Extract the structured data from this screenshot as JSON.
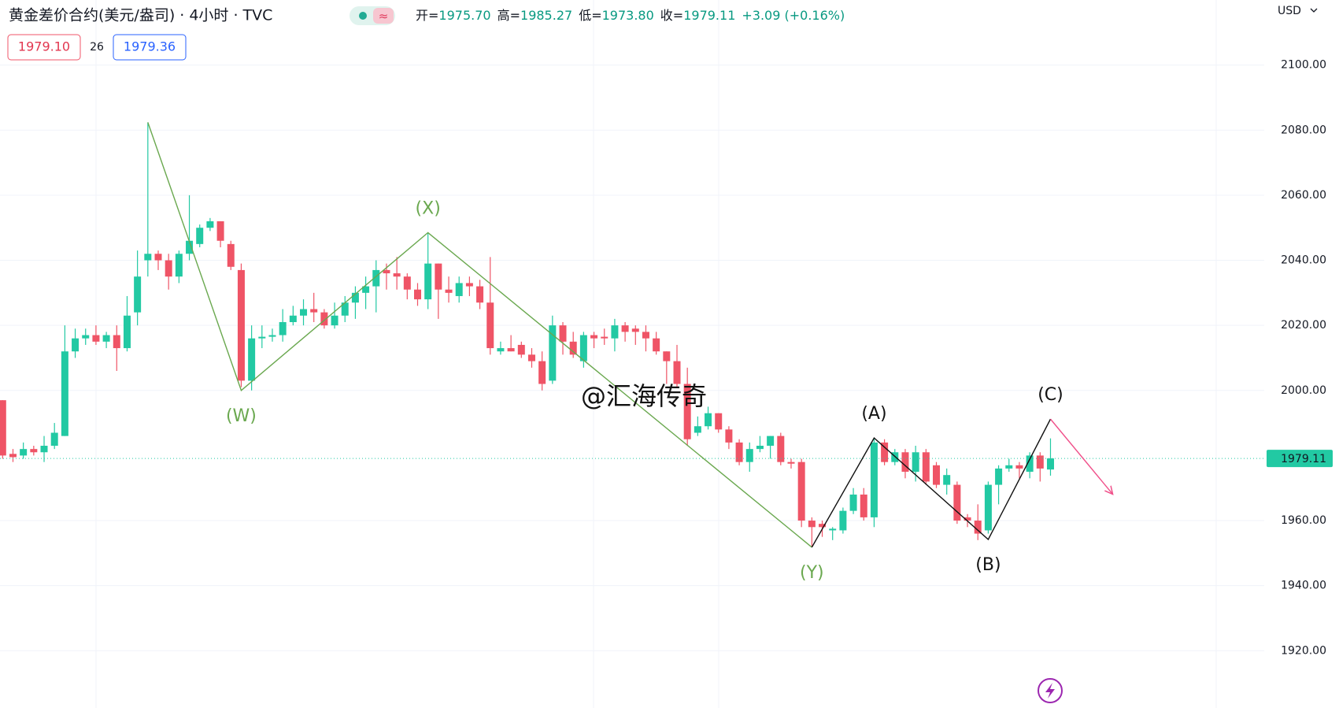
{
  "chart_data": {
    "type": "candlestick",
    "title": "黄金差价合约(美元/盎司) · 4小时 · TVC",
    "ohlc": [
      {
        "label": "开=",
        "value": "1975.70"
      },
      {
        "label": "高=",
        "value": "1985.27"
      },
      {
        "label": "低=",
        "value": "1973.80"
      },
      {
        "label": "收=",
        "value": "1979.11"
      }
    ],
    "change": "+3.09 (+0.16%)",
    "bid": "1979.10",
    "spread": "26",
    "ask": "1979.36",
    "currency": "USD",
    "last_price": "1979.11",
    "watermark": "@汇海传奇",
    "up_color": "#22c9a3",
    "down_color": "#ef5466",
    "open": [
      1997,
      1980.5,
      1980,
      1982,
      1981,
      1983,
      1986,
      2012,
      2016,
      2017,
      2015,
      2017,
      2013,
      2024,
      2040,
      2042,
      2040,
      2035,
      2042,
      2045,
      2050,
      2052,
      2045,
      2037,
      2003,
      2016,
      2016.5,
      2017,
      2021,
      2023,
      2025,
      2024,
      2020,
      2023,
      2027,
      2030,
      2032,
      2037,
      2036,
      2035,
      2031,
      2028,
      2039,
      2031,
      2029,
      2033,
      2032,
      2027,
      2012,
      2013,
      2014,
      2011,
      2009,
      2003,
      2020,
      2015,
      2009,
      2017,
      2016.5,
      2016,
      2020,
      2019,
      2018,
      2016,
      2012,
      2009,
      2002,
      1987,
      1989,
      1993,
      1988,
      1984,
      1978,
      1982,
      1983,
      1986,
      1978,
      1978,
      1960,
      1959,
      1957,
      1957,
      1963,
      1968,
      1961,
      1984,
      1978,
      1981,
      1975,
      1981,
      1977,
      1971,
      1971,
      1961,
      1960,
      1957,
      1971,
      1976,
      1977,
      1975,
      1980,
      1975.7
    ],
    "high": [
      1997,
      1982,
      1984,
      1983,
      1986,
      1990,
      2020,
      2019,
      2019,
      2020,
      2018,
      2020,
      2029,
      2043,
      2082.4,
      2043,
      2042,
      2043,
      2060,
      2051,
      2053,
      2052,
      2046,
      2039,
      2020,
      2020,
      2019,
      2025,
      2026,
      2028,
      2030,
      2025,
      2027,
      2029,
      2032,
      2035,
      2040,
      2039,
      2041,
      2036,
      2033,
      2048.5,
      2039,
      2035,
      2035,
      2035,
      2034,
      2041,
      2015,
      2017,
      2015,
      2013,
      2012,
      2023,
      2021,
      2018,
      2018,
      2018,
      2019,
      2022,
      2021,
      2020,
      2020,
      2018,
      2012,
      2014,
      2007,
      1992,
      1995,
      1993,
      1989,
      1985,
      1984,
      1986,
      1986,
      1987,
      1979,
      1979,
      1961,
      1960,
      1958,
      1964,
      1970,
      1970,
      1985.3,
      1985,
      1982,
      1982,
      1983,
      1982,
      1978,
      1976,
      1972,
      1962,
      1965,
      1972,
      1977,
      1979,
      1978,
      1981,
      1981,
      1985.27
    ],
    "low": [
      1979,
      1978,
      1979,
      1980,
      1978,
      1982,
      1986,
      2010,
      2014,
      2014,
      2013,
      2006,
      2012,
      2020,
      2035,
      2037,
      2031,
      2033,
      2040,
      2044,
      2049,
      2044,
      2037,
      2001,
      2000,
      2013,
      2015,
      2015,
      2020,
      2020,
      2021,
      2019,
      2019,
      2021,
      2022,
      2025,
      2024,
      2031,
      2031,
      2028,
      2026,
      2025,
      2022,
      2027,
      2027,
      2029,
      2025,
      2011,
      2011,
      2012,
      2010,
      2007,
      2000,
      2002,
      2011,
      2010,
      2007,
      2013,
      2014,
      2012,
      2015,
      2014,
      2012,
      2011,
      2002,
      2001,
      1983,
      1986,
      1988,
      1987,
      1982,
      1977,
      1975,
      1981,
      1979,
      1977,
      1976,
      1958,
      1952,
      1955,
      1954,
      1956,
      1962,
      1960,
      1958,
      1977,
      1977,
      1973,
      1972,
      1971,
      1970,
      1968,
      1959,
      1958,
      1954,
      1956,
      1965,
      1975,
      1973,
      1973,
      1972,
      1973.8
    ],
    "close": [
      1980,
      1979.5,
      1982,
      1981,
      1983,
      1987,
      2012,
      2016,
      2017,
      2015,
      2017,
      2013,
      2023,
      2035,
      2042,
      2040,
      2035,
      2042,
      2046,
      2050,
      2052,
      2046,
      2038,
      2003,
      2016,
      2016.5,
      2017,
      2021,
      2023,
      2025,
      2024,
      2020,
      2023,
      2027,
      2030,
      2032,
      2037,
      2036,
      2035,
      2031,
      2028,
      2039,
      2031,
      2030,
      2033,
      2032,
      2027,
      2013,
      2013,
      2012,
      2011,
      2009,
      2002,
      2020,
      2015,
      2011,
      2017,
      2016,
      2016,
      2020,
      2018,
      2018,
      2016,
      2012,
      2009,
      2002,
      1985,
      1989,
      1993,
      1988,
      1984,
      1978,
      1982,
      1983,
      1986,
      1978,
      1977.5,
      1960,
      1958,
      1958,
      1957.5,
      1963,
      1968,
      1961,
      1984,
      1978,
      1981,
      1975,
      1981,
      1972,
      1971,
      1974,
      1960,
      1960,
      1956,
      1971,
      1976,
      1977,
      1976,
      1980,
      1976,
      1979.11
    ],
    "xlim": [
      -0.25,
      121.6
    ],
    "ylim": [
      1902.4,
      2120
    ],
    "yticks": [
      {
        "value": 1920,
        "label": "1920.00"
      },
      {
        "value": 1940,
        "label": "1940.00"
      },
      {
        "value": 1960,
        "label": "1960.00"
      },
      {
        "value": 2000,
        "label": "2000.00"
      },
      {
        "value": 2020,
        "label": "2020.00"
      },
      {
        "value": 2040,
        "label": "2040.00"
      },
      {
        "value": 2060,
        "label": "2060.00"
      },
      {
        "value": 2080,
        "label": "2080.00"
      },
      {
        "value": 2100,
        "label": "2100.00"
      }
    ],
    "grid": true,
    "wave_lines": [
      {
        "color": "#6aa84f",
        "points": [
          [
            14,
            2082.4
          ],
          [
            23,
            2000
          ],
          [
            41,
            2048.5
          ],
          [
            78,
            1951.8
          ]
        ]
      },
      {
        "color": "#111111",
        "points": [
          [
            78,
            1951.8
          ],
          [
            84,
            1985.4
          ],
          [
            95,
            1954.2
          ],
          [
            101,
            1991.2
          ]
        ]
      },
      {
        "color": "#f0508a",
        "points": [
          [
            101,
            1991.2
          ],
          [
            107,
            1968.1
          ]
        ],
        "arrow": true
      }
    ],
    "wave_labels": [
      {
        "text": "(W)",
        "index": 23,
        "price": 2000,
        "position": "below",
        "color": "#6aa84f"
      },
      {
        "text": "(X)",
        "index": 41,
        "price": 2048.5,
        "position": "above",
        "color": "#6aa84f"
      },
      {
        "text": "(Y)",
        "index": 78,
        "price": 1951.8,
        "position": "below",
        "color": "#6aa84f"
      },
      {
        "text": "(A)",
        "index": 84,
        "price": 1985.4,
        "position": "above",
        "color": "#111111"
      },
      {
        "text": "(B)",
        "index": 95,
        "price": 1954.2,
        "position": "below",
        "color": "#111111"
      },
      {
        "text": "(C)",
        "index": 101,
        "price": 1991.2,
        "position": "above",
        "color": "#111111"
      }
    ]
  }
}
